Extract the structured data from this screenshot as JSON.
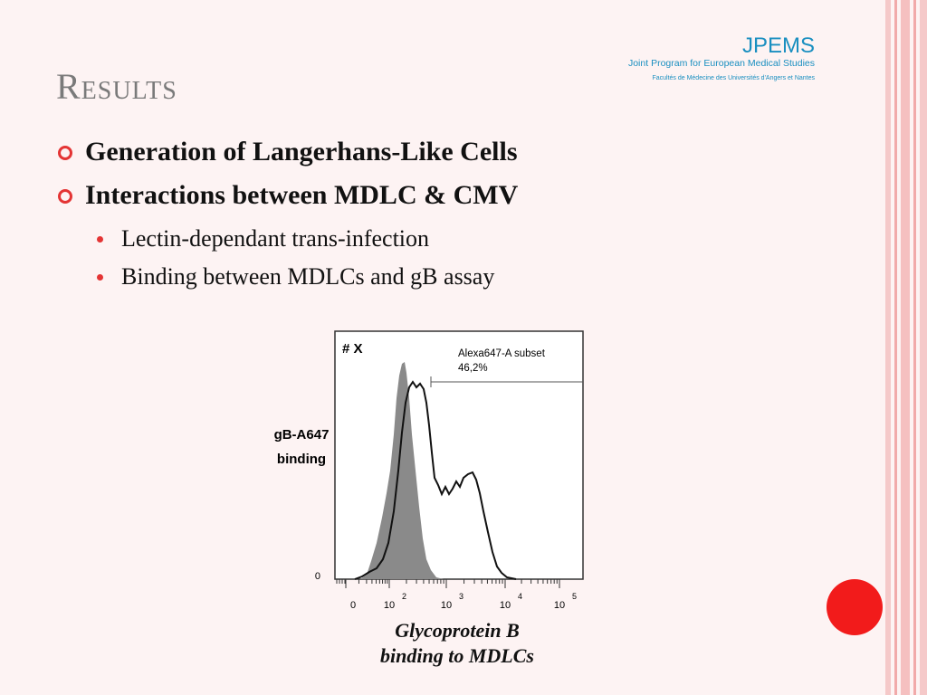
{
  "title": "Results",
  "logo": {
    "name": "JPEMS",
    "tagline": "Joint Program for European Medical Studies",
    "subtitle": "Facultés de Médecine des Universités d'Angers et Nantes"
  },
  "bullets": [
    {
      "text": "Generation of Langerhans-Like Cells",
      "sub": []
    },
    {
      "text": "Interactions between MDLC & CMV",
      "sub": [
        "Lectin-dependant trans-infection",
        "Binding between MDLCs and gB assay"
      ]
    }
  ],
  "figure": {
    "plot_label": "# X",
    "y_label_line1": "gB-A647",
    "y_label_line2": "binding",
    "y_tick": "0",
    "gate_label": "Alexa647-A subset",
    "gate_value": "46,2%",
    "x_ticks": [
      {
        "base": "0",
        "exp": ""
      },
      {
        "base": "10",
        "exp": "2"
      },
      {
        "base": "10",
        "exp": "3"
      },
      {
        "base": "10",
        "exp": "4"
      },
      {
        "base": "10",
        "exp": "5"
      }
    ]
  },
  "caption": {
    "line1": "Glycoprotein B",
    "line2": "binding to MDLCs"
  },
  "colors": {
    "accent": "#e43434",
    "logo_teal": "#1a8fc0",
    "stripe_pink": "#f1aaaa",
    "filled_histogram": "#8a8a8a"
  }
}
